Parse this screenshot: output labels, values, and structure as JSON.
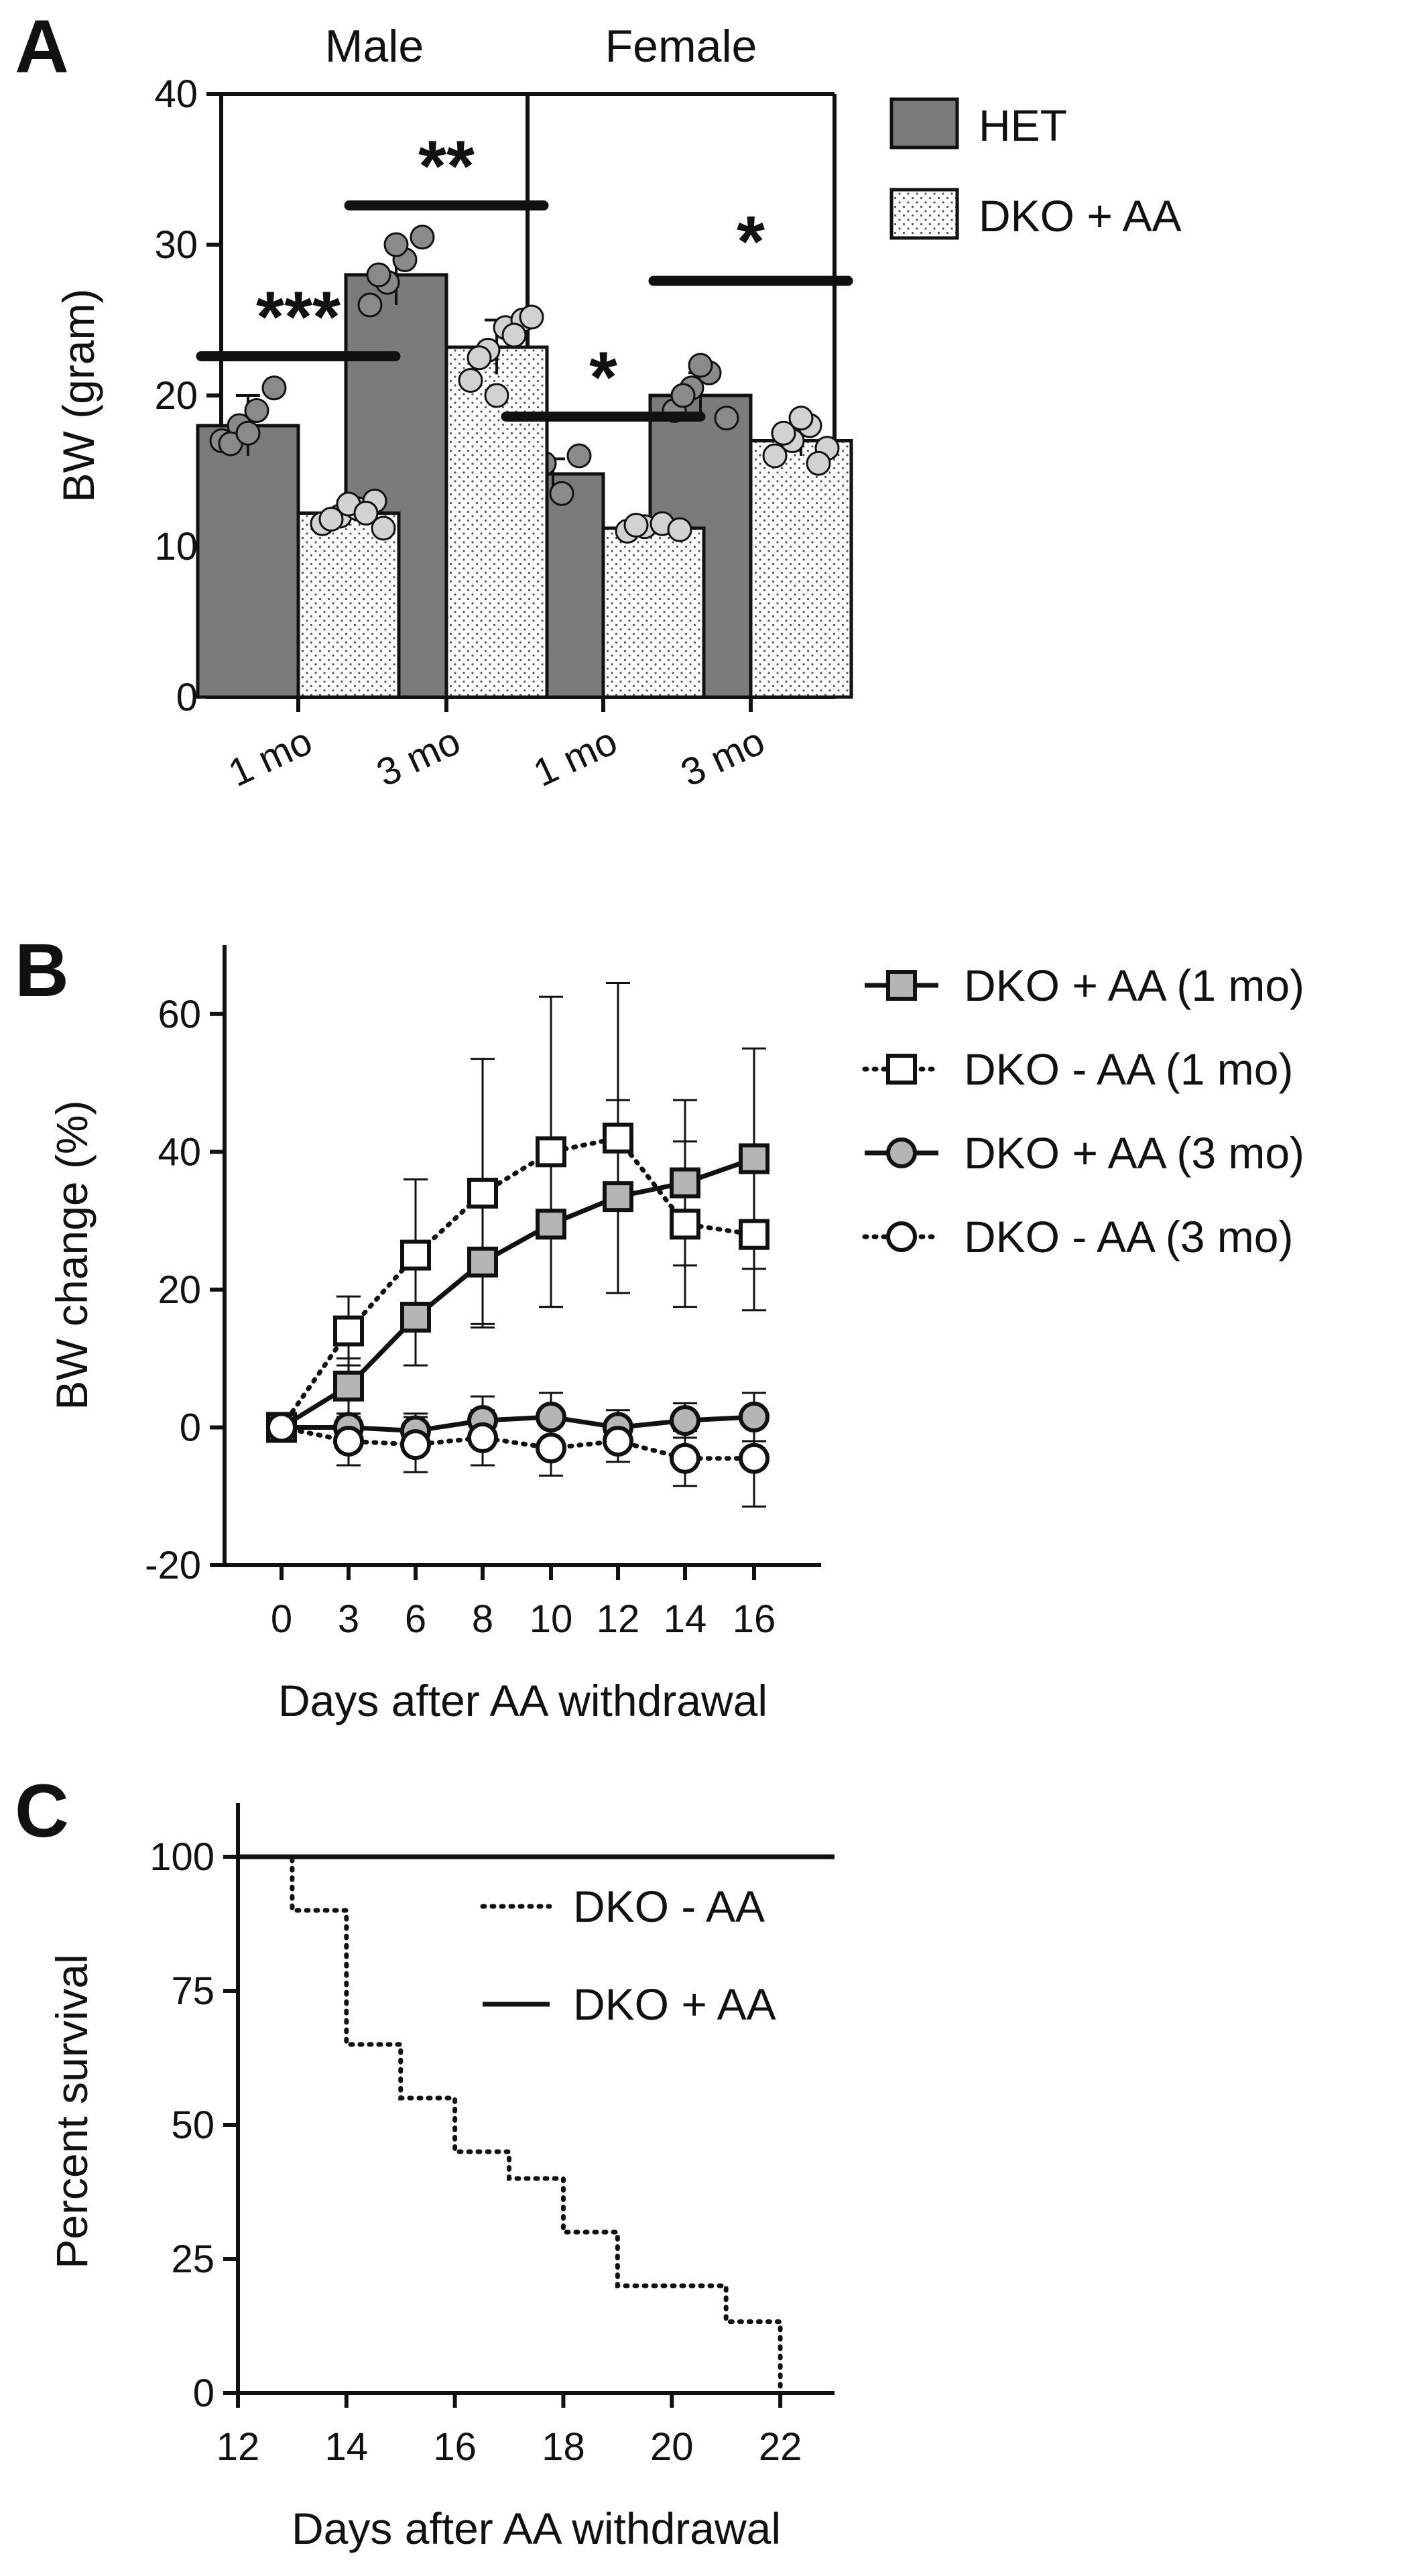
{
  "chart_data": [
    {
      "panel": "A",
      "type": "bar",
      "ylabel": "BW (gram)",
      "ylim": [
        0,
        40
      ],
      "yticks": [
        "0",
        "10",
        "20",
        "30",
        "40"
      ],
      "groups": [
        {
          "title": "Male",
          "categories": [
            "1 mo",
            "3 mo"
          ],
          "significance": [
            "***",
            "**"
          ]
        },
        {
          "title": "Female",
          "categories": [
            "1 mo",
            "3 mo"
          ],
          "significance": [
            "*",
            "*"
          ]
        }
      ],
      "series": [
        {
          "name": "HET",
          "fill": "solid-gray",
          "values": [
            18.0,
            28.0,
            14.8,
            20.0
          ],
          "errors": [
            2.0,
            2.0,
            1.0,
            1.5
          ],
          "points": [
            [
              17,
              18,
              19,
              20.5,
              16.8,
              17.5
            ],
            [
              26,
              27.5,
              29,
              30.5,
              28,
              30
            ],
            [
              14.2,
              15.5,
              13.5,
              16,
              15
            ],
            [
              19,
              20.5,
              21.5,
              18.5,
              20,
              22
            ]
          ]
        },
        {
          "name": "DKO + AA",
          "fill": "dotted",
          "values": [
            12.2,
            23.2,
            11.2,
            17.0
          ],
          "errors": [
            0.8,
            1.8,
            0.4,
            1.0
          ],
          "points": [
            [
              11.5,
              12,
              12.5,
              13,
              11.8,
              12.8,
              12.2,
              11.2
            ],
            [
              21,
              23,
              24.5,
              25,
              22.5,
              20,
              24,
              25.2
            ],
            [
              11,
              11.3,
              11.5,
              11.1,
              11.4
            ],
            [
              16,
              17,
              18,
              16.5,
              17.5,
              18.5,
              15.5
            ]
          ]
        }
      ],
      "legend": [
        "HET",
        "DKO + AA"
      ],
      "legend_position": "right"
    },
    {
      "panel": "B",
      "type": "line",
      "xlabel": "Days after AA withdrawal",
      "ylabel": "BW change (%)",
      "x": [
        0,
        3,
        6,
        8,
        10,
        12,
        14,
        16
      ],
      "xticks": [
        "0",
        "3",
        "6",
        "8",
        "10",
        "12",
        "14",
        "16"
      ],
      "ylim": [
        -20,
        70
      ],
      "yticks": [
        "-20",
        "0",
        "20",
        "40",
        "60"
      ],
      "series": [
        {
          "name": "DKO + AA (1 mo)",
          "marker": "square-filled",
          "line": "solid",
          "values": [
            0,
            6,
            16,
            24,
            29.5,
            33.5,
            35.5,
            39
          ],
          "errors": [
            0,
            4,
            7,
            9,
            12,
            14,
            12,
            16
          ]
        },
        {
          "name": "DKO - AA (1 mo)",
          "marker": "square-open",
          "line": "dotted",
          "values": [
            0,
            14,
            25,
            34,
            40,
            42,
            29.5,
            28
          ],
          "errors": [
            0,
            5,
            11,
            19.5,
            22.5,
            22.5,
            12,
            11
          ]
        },
        {
          "name": "DKO + AA (3 mo)",
          "marker": "circle-filled",
          "line": "solid",
          "values": [
            0,
            0,
            -0.5,
            1,
            1.5,
            0,
            1,
            1.5
          ],
          "errors": [
            0,
            2,
            2.5,
            3.5,
            3.5,
            2.5,
            2.5,
            3.5
          ]
        },
        {
          "name": "DKO - AA (3 mo)",
          "marker": "circle-open",
          "line": "dotted",
          "values": [
            0,
            -2,
            -2.5,
            -1.5,
            -3,
            -2,
            -4.5,
            -4.5
          ],
          "errors": [
            0,
            3.5,
            4,
            4,
            4,
            3,
            4,
            7
          ]
        }
      ],
      "legend_position": "right"
    },
    {
      "panel": "C",
      "type": "line",
      "xlabel": "Days after AA withdrawal",
      "ylabel": "Percent survival",
      "xlim": [
        12,
        23
      ],
      "xticks": [
        "12",
        "14",
        "16",
        "18",
        "20",
        "22"
      ],
      "ylim": [
        0,
        100
      ],
      "yticks": [
        "0",
        "25",
        "50",
        "75",
        "100"
      ],
      "series": [
        {
          "name": "DKO - AA",
          "line": "dotted",
          "step": true,
          "x": [
            12,
            13,
            14,
            15,
            16,
            17,
            18,
            19,
            21,
            22
          ],
          "values": [
            100,
            90,
            65,
            55,
            45,
            40,
            30,
            20,
            13.3,
            0
          ]
        },
        {
          "name": "DKO + AA",
          "line": "solid",
          "step": true,
          "x": [
            12,
            23
          ],
          "values": [
            100,
            100
          ]
        }
      ],
      "legend_position": "top-right"
    }
  ],
  "labels": {
    "panel_a": "A",
    "panel_b": "B",
    "panel_c": "C"
  },
  "colors": {
    "het_fill": "#7b7b7b",
    "dko_fill": "#ffffff",
    "dot_fill": "#9a9a9a",
    "point_filled": "#8a8a8a",
    "point_light": "#d2d2d2",
    "marker_fill": "#b5b5b5",
    "axis": "#111111"
  }
}
